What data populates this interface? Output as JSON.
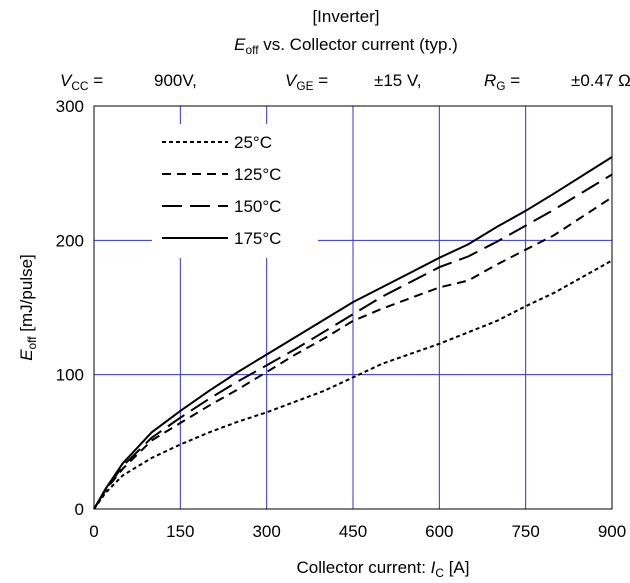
{
  "chart_data": {
    "type": "line",
    "title_line1": "[Inverter]",
    "title_line2": {
      "main": "E",
      "sub": "off",
      "rest": " vs. Collector current  (typ.)"
    },
    "conditions": [
      {
        "main": "V",
        "sub": "CC",
        "rest": " =",
        "value": "900V,"
      },
      {
        "main": "V",
        "sub": "GE",
        "rest": " =",
        "value": "±15 V,"
      },
      {
        "main": "R",
        "sub": "G",
        "rest": " =",
        "value": "±0.47 Ω"
      }
    ],
    "xlabel": {
      "prefix": "Collector current: ",
      "main": "I",
      "sub": "C",
      "rest": " [A]"
    },
    "ylabel": {
      "main": "E",
      "sub": "off",
      "rest": " [mJ/pulse]"
    },
    "xlim": [
      0,
      900
    ],
    "ylim": [
      0,
      300
    ],
    "xticks": [
      0,
      150,
      300,
      450,
      600,
      750,
      900
    ],
    "yticks": [
      0,
      100,
      200,
      300
    ],
    "grid": true,
    "legend_position": "top-left",
    "colors": {
      "grid": "#3333cc",
      "series": "#000000"
    },
    "series": [
      {
        "name": "25°C",
        "dash": "dotted",
        "x": [
          0,
          20,
          50,
          100,
          150,
          200,
          250,
          300,
          400,
          450,
          500,
          600,
          700,
          750,
          800,
          900
        ],
        "y": [
          0,
          12,
          25,
          38,
          48,
          57,
          65,
          72,
          88,
          98,
          108,
          123,
          140,
          151,
          161,
          185
        ]
      },
      {
        "name": "125°C",
        "dash": "short",
        "x": [
          0,
          20,
          50,
          100,
          150,
          200,
          250,
          300,
          350,
          400,
          450,
          500,
          600,
          650,
          700,
          750,
          800,
          900
        ],
        "y": [
          0,
          14,
          30,
          51,
          64,
          77,
          89,
          102,
          115,
          127,
          140,
          149,
          165,
          170,
          182,
          193,
          204,
          232
        ]
      },
      {
        "name": "150°C",
        "dash": "long",
        "x": [
          0,
          20,
          50,
          100,
          150,
          200,
          250,
          300,
          350,
          400,
          450,
          500,
          550,
          600,
          650,
          700,
          750,
          800,
          900
        ],
        "y": [
          0,
          14,
          32,
          53,
          68,
          82,
          95,
          107,
          119,
          132,
          145,
          158,
          169,
          180,
          188,
          199,
          211,
          223,
          249
        ]
      },
      {
        "name": "175°C",
        "dash": "solid",
        "x": [
          0,
          20,
          50,
          100,
          150,
          200,
          250,
          300,
          350,
          400,
          450,
          500,
          550,
          600,
          650,
          700,
          750,
          800,
          900
        ],
        "y": [
          0,
          15,
          34,
          57,
          73,
          88,
          102,
          115,
          128,
          141,
          154,
          165,
          176,
          187,
          197,
          210,
          222,
          235,
          262
        ]
      }
    ]
  }
}
